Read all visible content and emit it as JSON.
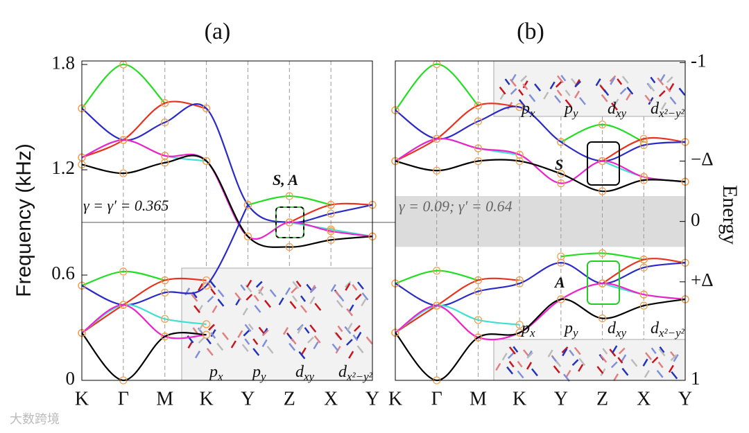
{
  "chart_data": [
    {
      "type": "line",
      "title": "(a)",
      "ylabel": "Frequency (kHz)",
      "categories": [
        "K",
        "Γ",
        "M",
        "K",
        "Y",
        "Z",
        "X",
        "Y"
      ],
      "ylim": [
        0,
        1.82
      ],
      "yticks": [
        0,
        0.6,
        1.2,
        1.8
      ],
      "xgrid": true,
      "reference_line": 0.9,
      "marker_color": "#f0a050",
      "annotations": [
        "γ = γ′ = 0.365",
        "S, A"
      ],
      "inset_labels": [
        {
          "base": "p",
          "sub": "x"
        },
        {
          "base": "p",
          "sub": "y"
        },
        {
          "base": "d",
          "sub": "xy"
        },
        {
          "base": "d",
          "sub": "x²−y²"
        }
      ],
      "series": [
        {
          "color": "#22dd22",
          "values": [
            1.55,
            1.8,
            1.58,
            null,
            1.0,
            1.05,
            1.0,
            null
          ]
        },
        {
          "color": "#e8321e",
          "values": [
            1.27,
            1.37,
            1.58,
            1.55,
            null,
            0.9,
            1.0,
            1.0
          ]
        },
        {
          "color": "#2a2ac8",
          "values": [
            1.55,
            1.37,
            1.47,
            1.55,
            1.0,
            0.9,
            0.95,
            1.0
          ]
        },
        {
          "color": "#40e0d0",
          "values": [
            1.27,
            1.37,
            1.28,
            1.25,
            null,
            0.9,
            0.86,
            0.82
          ]
        },
        {
          "color": "#ee22cc",
          "values": [
            1.27,
            1.37,
            1.28,
            1.25,
            0.82,
            0.9,
            0.85,
            0.82
          ]
        },
        {
          "color": "#000000",
          "values": [
            1.23,
            1.18,
            1.24,
            1.25,
            0.82,
            0.76,
            0.8,
            0.82
          ]
        },
        {
          "color": "#22dd22",
          "values": [
            0.54,
            0.62,
            0.57,
            null,
            null,
            null,
            null,
            null
          ]
        },
        {
          "color": "#e8321e",
          "values": [
            0.27,
            0.43,
            0.57,
            0.57,
            null,
            null,
            null,
            null
          ]
        },
        {
          "color": "#2a2ac8",
          "values": [
            0.54,
            0.43,
            0.5,
            0.54,
            1.0,
            null,
            null,
            null
          ]
        },
        {
          "color": "#40e0d0",
          "values": [
            0.27,
            0.43,
            0.35,
            0.32,
            null,
            null,
            null,
            null
          ]
        },
        {
          "color": "#ee22cc",
          "values": [
            0.27,
            0.43,
            0.25,
            0.26,
            null,
            null,
            null,
            null
          ]
        },
        {
          "color": "#000000",
          "values": [
            0.27,
            0,
            0.25,
            0.26,
            null,
            null,
            null,
            null
          ]
        }
      ]
    },
    {
      "type": "line",
      "title": "(b)",
      "y2label": "Energy",
      "categories": [
        "K",
        "Γ",
        "M",
        "K",
        "Y",
        "Z",
        "X",
        "Y"
      ],
      "ylim": [
        1,
        -1.01
      ],
      "yticks": [
        -1,
        {
          "value": -0.38,
          "label": "−Δ"
        },
        0,
        {
          "value": 0.38,
          "label": "+Δ"
        },
        1
      ],
      "xgrid": true,
      "shaded_band": [
        -0.16,
        0.16
      ],
      "marker_color": "#f0a050",
      "annotations": [
        "γ = 0.09; γ′ = 0.64",
        "S",
        "A"
      ],
      "inset_labels": [
        {
          "base": "p",
          "sub": "x"
        },
        {
          "base": "p",
          "sub": "y"
        },
        {
          "base": "d",
          "sub": "xy"
        },
        {
          "base": "d",
          "sub": "x²−y²"
        }
      ],
      "series": [
        {
          "color": "#22dd22",
          "values": [
            -0.7,
            -0.99,
            -0.73,
            null,
            -0.5,
            -0.61,
            -0.5,
            null
          ]
        },
        {
          "color": "#e8321e",
          "values": [
            -0.38,
            -0.52,
            -0.73,
            -0.72,
            null,
            -0.38,
            -0.52,
            -0.5
          ]
        },
        {
          "color": "#2a2ac8",
          "values": [
            -0.7,
            -0.52,
            -0.63,
            -0.72,
            -0.5,
            -0.38,
            -0.48,
            -0.5
          ]
        },
        {
          "color": "#40e0d0",
          "values": [
            -0.38,
            -0.52,
            -0.46,
            -0.42,
            null,
            -0.38,
            -0.28,
            -0.25
          ]
        },
        {
          "color": "#ee22cc",
          "values": [
            -0.38,
            -0.52,
            -0.46,
            -0.42,
            -0.24,
            -0.38,
            -0.28,
            -0.25
          ]
        },
        {
          "color": "#000000",
          "values": [
            -0.38,
            -0.32,
            -0.38,
            -0.38,
            -0.3,
            -0.19,
            -0.26,
            -0.25
          ]
        },
        {
          "color": "#22dd22",
          "values": [
            0.39,
            0.31,
            0.37,
            null,
            0.22,
            0.2,
            0.24,
            null
          ]
        },
        {
          "color": "#e8321e",
          "values": [
            0.7,
            0.53,
            0.37,
            0.37,
            null,
            0.39,
            0.24,
            0.26
          ]
        },
        {
          "color": "#2a2ac8",
          "values": [
            0.39,
            0.53,
            0.44,
            0.39,
            0.26,
            0.39,
            0.29,
            0.26
          ]
        },
        {
          "color": "#40e0d0",
          "values": [
            0.7,
            0.53,
            0.62,
            0.65,
            null,
            0.39,
            0.46,
            0.49
          ]
        },
        {
          "color": "#ee22cc",
          "values": [
            0.7,
            0.53,
            0.73,
            0.7,
            0.49,
            0.39,
            0.46,
            0.49
          ]
        },
        {
          "color": "#000000",
          "values": [
            0.7,
            1.0,
            0.73,
            0.7,
            0.49,
            0.61,
            0.53,
            0.49
          ]
        }
      ]
    }
  ],
  "watermark": "大数跨境"
}
